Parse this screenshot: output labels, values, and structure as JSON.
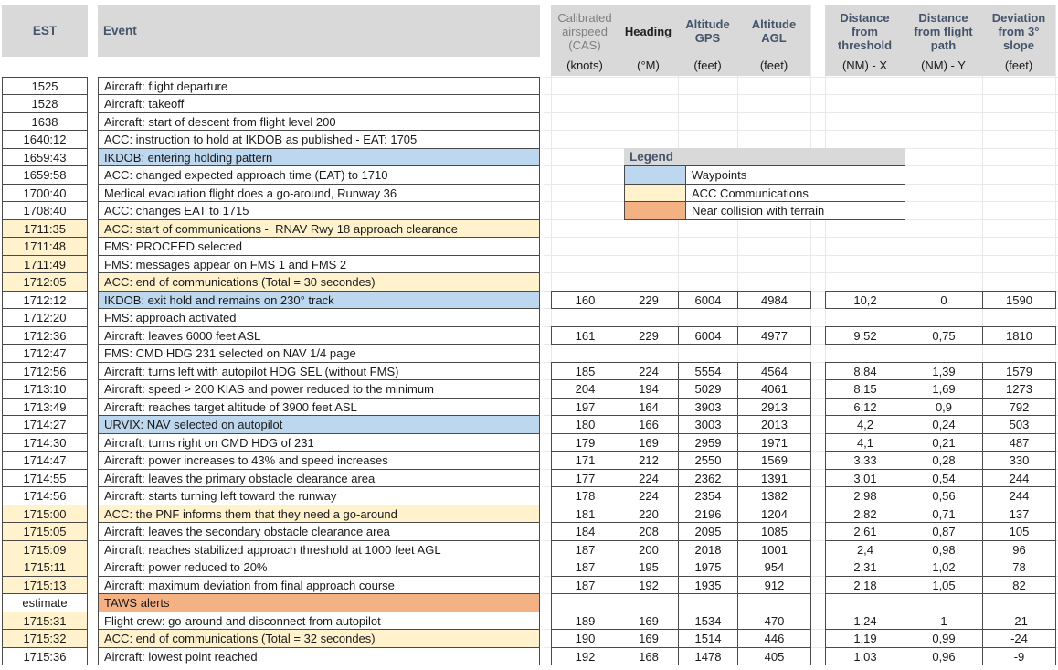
{
  "colors": {
    "blue": "#BDD7EE",
    "yellow": "#FFF2CC",
    "orange": "#F4B183",
    "header_gray": "#D9D9D9",
    "header_text": "#44546A",
    "cell_border": "#4a4a4a"
  },
  "table": {
    "est_header": "EST",
    "event_header": "Event",
    "col_headers": [
      {
        "lines": [
          "Calibrated",
          "airspeed",
          "(CAS)"
        ],
        "unit": "(knots)",
        "style": "gray"
      },
      {
        "lines": [
          "Heading"
        ],
        "unit": "(°M)",
        "style": "black"
      },
      {
        "lines": [
          "Altitude",
          "GPS"
        ],
        "unit": "(feet)",
        "style": "navy"
      },
      {
        "lines": [
          "Altitude",
          "AGL"
        ],
        "unit": "(feet)",
        "style": "navy"
      },
      {
        "lines": [
          "Distance",
          "from",
          "threshold"
        ],
        "unit": "(NM) - X",
        "style": "navy"
      },
      {
        "lines": [
          "Distance",
          "from flight",
          "path"
        ],
        "unit": "(NM) - Y",
        "style": "navy"
      },
      {
        "lines": [
          "Deviation",
          "from 3°",
          "slope"
        ],
        "unit": "(feet)",
        "style": "navy"
      }
    ],
    "rows": [
      {
        "est": "1525",
        "event": "Aircraft: flight departure",
        "est_bg": null,
        "event_bg": null,
        "values": null
      },
      {
        "est": "1528",
        "event": "Aircraft: takeoff",
        "est_bg": null,
        "event_bg": null,
        "values": null
      },
      {
        "est": "1638",
        "event": "Aircraft: start of descent from flight level 200",
        "est_bg": null,
        "event_bg": null,
        "values": null
      },
      {
        "est": "1640:12",
        "event": "ACC: instruction to hold at IKDOB as published - EAT: 1705",
        "est_bg": null,
        "event_bg": null,
        "values": null
      },
      {
        "est": "1659:43",
        "event": "IKDOB: entering holding pattern",
        "est_bg": null,
        "event_bg": "blue",
        "values": null
      },
      {
        "est": "1659:58",
        "event": "ACC: changed expected approach time (EAT) to 1710",
        "est_bg": null,
        "event_bg": null,
        "values": null
      },
      {
        "est": "1700:40",
        "event": "Medical evacuation flight does a go-around, Runway 36",
        "est_bg": null,
        "event_bg": null,
        "values": null
      },
      {
        "est": "1708:40",
        "event": "ACC: changes EAT to 1715",
        "est_bg": null,
        "event_bg": null,
        "values": null
      },
      {
        "est": "1711:35",
        "event": "ACC: start of communications -  RNAV Rwy 18 approach clearance",
        "est_bg": "yellow",
        "event_bg": "yellow",
        "values": null
      },
      {
        "est": "1711:48",
        "event": "FMS: PROCEED selected",
        "est_bg": "yellow",
        "event_bg": null,
        "values": null
      },
      {
        "est": "1711:49",
        "event": "FMS: messages appear on FMS 1 and FMS 2",
        "est_bg": "yellow",
        "event_bg": null,
        "values": null
      },
      {
        "est": "1712:05",
        "event": "ACC: end of communications (Total = 30 secondes)",
        "est_bg": "yellow",
        "event_bg": "yellow",
        "values": null
      },
      {
        "est": "1712:12",
        "event": "IKDOB: exit hold and remains on 230° track",
        "est_bg": null,
        "event_bg": "blue",
        "values": [
          "160",
          "229",
          "6004",
          "4984",
          "10,2",
          "0",
          "1590"
        ]
      },
      {
        "est": "1712:20",
        "event": "FMS: approach activated",
        "est_bg": null,
        "event_bg": null,
        "values": null
      },
      {
        "est": "1712:36",
        "event": "Aircraft: leaves 6000 feet ASL",
        "est_bg": null,
        "event_bg": null,
        "values": [
          "161",
          "229",
          "6004",
          "4977",
          "9,52",
          "0,75",
          "1810"
        ]
      },
      {
        "est": "1712:47",
        "event": "FMS: CMD HDG 231 selected on NAV 1/4 page",
        "est_bg": null,
        "event_bg": null,
        "values": null
      },
      {
        "est": "1712:56",
        "event": "Aircraft: turns left with autopilot HDG SEL (without FMS)",
        "est_bg": null,
        "event_bg": null,
        "values": [
          "185",
          "224",
          "5554",
          "4564",
          "8,84",
          "1,39",
          "1579"
        ]
      },
      {
        "est": "1713:10",
        "event": "Aircraft: speed > 200 KIAS and power reduced to the minimum",
        "est_bg": null,
        "event_bg": null,
        "values": [
          "204",
          "194",
          "5029",
          "4061",
          "8,15",
          "1,69",
          "1273"
        ]
      },
      {
        "est": "1713:49",
        "event": "Aircraft: reaches target altitude of 3900 feet ASL",
        "est_bg": null,
        "event_bg": null,
        "values": [
          "197",
          "164",
          "3903",
          "2913",
          "6,12",
          "0,9",
          "792"
        ]
      },
      {
        "est": "1714:27",
        "event": "URVIX: NAV selected on autopilot",
        "est_bg": null,
        "event_bg": "blue",
        "values": [
          "180",
          "166",
          "3003",
          "2013",
          "4,2",
          "0,24",
          "503"
        ]
      },
      {
        "est": "1714:30",
        "event": "Aircraft: turns right on CMD HDG of 231",
        "est_bg": null,
        "event_bg": null,
        "values": [
          "179",
          "169",
          "2959",
          "1971",
          "4,1",
          "0,21",
          "487"
        ]
      },
      {
        "est": "1714:47",
        "event": "Aircraft: power increases to 43% and speed increases",
        "est_bg": null,
        "event_bg": null,
        "values": [
          "171",
          "212",
          "2550",
          "1569",
          "3,33",
          "0,28",
          "330"
        ]
      },
      {
        "est": "1714:55",
        "event": "Aircraft: leaves the primary obstacle clearance area",
        "est_bg": null,
        "event_bg": null,
        "values": [
          "177",
          "224",
          "2362",
          "1391",
          "3,01",
          "0,54",
          "244"
        ]
      },
      {
        "est": "1714:56",
        "event": "Aircraft: starts turning left toward the runway",
        "est_bg": null,
        "event_bg": null,
        "values": [
          "178",
          "224",
          "2354",
          "1382",
          "2,98",
          "0,56",
          "244"
        ]
      },
      {
        "est": "1715:00",
        "event": "ACC: the PNF informs them that they need a go-around",
        "est_bg": "yellow",
        "event_bg": "yellow",
        "values": [
          "181",
          "220",
          "2196",
          "1204",
          "2,82",
          "0,71",
          "137"
        ]
      },
      {
        "est": "1715:05",
        "event": "Aircraft: leaves the secondary obstacle clearance area",
        "est_bg": "yellow",
        "event_bg": null,
        "values": [
          "184",
          "208",
          "2095",
          "1085",
          "2,61",
          "0,87",
          "105"
        ]
      },
      {
        "est": "1715:09",
        "event": "Aircraft: reaches stabilized approach threshold at 1000 feet AGL",
        "est_bg": "yellow",
        "event_bg": null,
        "values": [
          "187",
          "200",
          "2018",
          "1001",
          "2,4",
          "0,98",
          "96"
        ]
      },
      {
        "est": "1715:11",
        "event": "Aircraft: power reduced to 20%",
        "est_bg": "yellow",
        "event_bg": null,
        "values": [
          "187",
          "195",
          "1975",
          "954",
          "2,31",
          "1,02",
          "78"
        ]
      },
      {
        "est": "1715:13",
        "event": "Aircraft: maximum deviation from final approach course",
        "est_bg": "yellow",
        "event_bg": null,
        "values": [
          "187",
          "192",
          "1935",
          "912",
          "2,18",
          "1,05",
          "82"
        ]
      },
      {
        "est": "estimate",
        "event": "TAWS alerts",
        "est_bg": null,
        "event_bg": "orange",
        "values": [
          "",
          "",
          "",
          "",
          "",
          "",
          ""
        ]
      },
      {
        "est": "1715:31",
        "event": "Flight crew: go-around and disconnect from autopilot",
        "est_bg": "yellow",
        "event_bg": null,
        "values": [
          "189",
          "169",
          "1534",
          "470",
          "1,24",
          "1",
          "-21"
        ]
      },
      {
        "est": "1715:32",
        "event": "ACC: end of communications (Total = 32 secondes)",
        "est_bg": "yellow",
        "event_bg": "yellow",
        "values": [
          "190",
          "169",
          "1514",
          "446",
          "1,19",
          "0,99",
          "-24"
        ]
      },
      {
        "est": "1715:36",
        "event": "Aircraft: lowest point reached",
        "est_bg": null,
        "event_bg": null,
        "values": [
          "192",
          "168",
          "1478",
          "405",
          "1,03",
          "0,96",
          "-9"
        ]
      }
    ]
  },
  "legend": {
    "title": "Legend",
    "items": [
      {
        "label": "Waypoints",
        "color_key": "blue"
      },
      {
        "label": "ACC Communications",
        "color_key": "yellow"
      },
      {
        "label": "Near collision with terrain",
        "color_key": "orange"
      }
    ]
  }
}
